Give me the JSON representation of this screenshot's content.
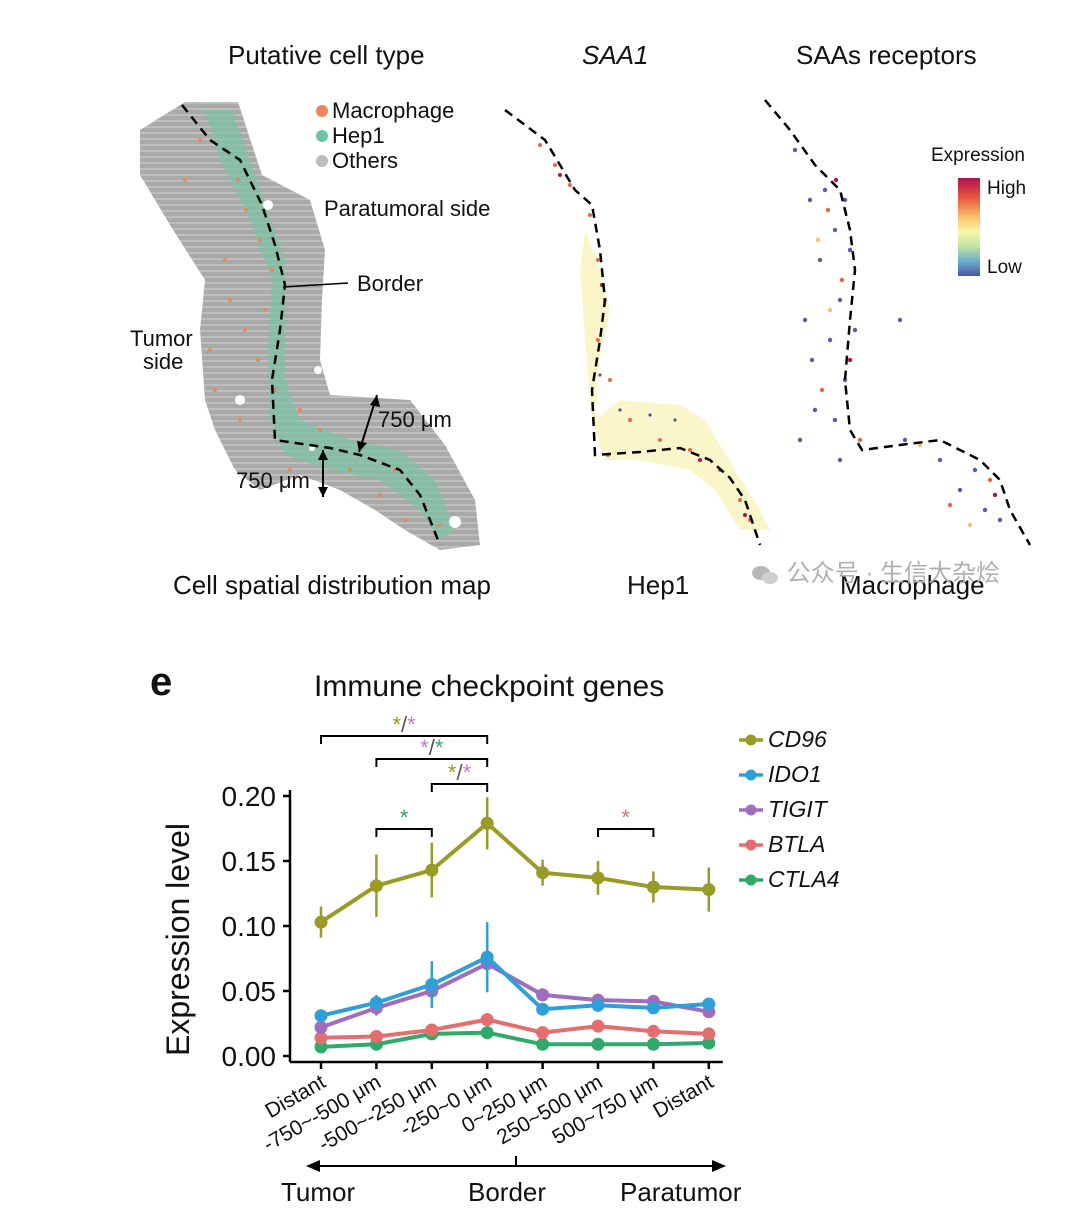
{
  "top_panel": {
    "titles": {
      "cell_type": "Putative cell type",
      "saa1": "SAA1",
      "receptors": "SAAs receptors"
    },
    "legend": [
      {
        "label": "Macrophage",
        "color": "#e8875e"
      },
      {
        "label": "Hep1",
        "color": "#6cc4a0"
      },
      {
        "label": "Others",
        "color": "#bdbdbd"
      }
    ],
    "annotations": {
      "paratumoral": "Paratumoral side",
      "border": "Border",
      "tumor_line1": "Tumor",
      "tumor_line2": "side",
      "dist1": "750 μm",
      "dist2": "750 μm"
    },
    "expression_legend": {
      "title": "Expression",
      "high": "High",
      "low": "Low",
      "colors": [
        "#b0124f",
        "#e8563f",
        "#f8c269",
        "#f8f7ae",
        "#bfe3a0",
        "#6aaed0",
        "#4b55a4"
      ]
    },
    "bottom_labels": {
      "map": "Cell spatial distribution map",
      "hep1": "Hep1",
      "macrophage": "Macrophage"
    },
    "watermark": "公众号 · 生信大杂烩"
  },
  "panel_letter": "e",
  "chart_data": {
    "type": "line",
    "title": "Immune checkpoint genes",
    "ylabel": "Expression level",
    "xlabel": "",
    "ylim": [
      0,
      0.2
    ],
    "yticks": [
      "0.00",
      "0.05",
      "0.10",
      "0.15",
      "0.20"
    ],
    "ytick_values": [
      0,
      0.05,
      0.1,
      0.15,
      0.2
    ],
    "categories": [
      "Distant",
      "-750~-500 μm",
      "-500~-250 μm",
      "-250~0 μm",
      "0~250 μm",
      "250~500 μm",
      "500~750 μm",
      "Distant"
    ],
    "series": [
      {
        "name": "CD96",
        "color": "#9a9a27",
        "values": [
          0.103,
          0.131,
          0.143,
          0.179,
          0.141,
          0.137,
          0.13,
          0.128
        ],
        "errors": [
          0.012,
          0.024,
          0.021,
          0.02,
          0.01,
          0.013,
          0.012,
          0.017
        ]
      },
      {
        "name": "IDO1",
        "color": "#2f9fd8",
        "values": [
          0.031,
          0.041,
          0.055,
          0.076,
          0.036,
          0.039,
          0.037,
          0.04
        ],
        "errors": [
          0.004,
          0.006,
          0.018,
          0.027,
          0.004,
          0.005,
          0.004,
          0.004
        ]
      },
      {
        "name": "TIGIT",
        "color": "#a06cbc",
        "values": [
          0.022,
          0.037,
          0.05,
          0.071,
          0.047,
          0.043,
          0.042,
          0.034
        ],
        "errors": [
          0.004,
          0.006,
          0.012,
          0.02,
          0.005,
          0.004,
          0.004,
          0.004
        ]
      },
      {
        "name": "BTLA",
        "color": "#e46e6e",
        "values": [
          0.014,
          0.015,
          0.02,
          0.028,
          0.018,
          0.023,
          0.019,
          0.017
        ],
        "errors": [
          0.002,
          0.002,
          0.003,
          0.005,
          0.002,
          0.003,
          0.002,
          0.002
        ]
      },
      {
        "name": "CTLA4",
        "color": "#2faa6a",
        "values": [
          0.007,
          0.009,
          0.017,
          0.018,
          0.009,
          0.009,
          0.009,
          0.01
        ],
        "errors": [
          0.001,
          0.001,
          0.002,
          0.002,
          0.001,
          0.001,
          0.001,
          0.001
        ]
      }
    ],
    "significance": [
      {
        "from": 0,
        "to": 3,
        "marks": [
          {
            "text": "*",
            "color": "#9a9a27"
          },
          {
            "text": "/",
            "color": "#555555"
          },
          {
            "text": "*",
            "color": "#c07cc8"
          }
        ]
      },
      {
        "from": 1,
        "to": 3,
        "marks": [
          {
            "text": "*",
            "color": "#c07cc8"
          },
          {
            "text": "/",
            "color": "#555555"
          },
          {
            "text": "*",
            "color": "#2faa6a"
          }
        ]
      },
      {
        "from": 2,
        "to": 3,
        "marks": [
          {
            "text": "*",
            "color": "#9a9a27"
          },
          {
            "text": "/",
            "color": "#555555"
          },
          {
            "text": "*",
            "color": "#c07cc8"
          }
        ]
      },
      {
        "from": 1,
        "to": 2,
        "marks": [
          {
            "text": "*",
            "color": "#2faa6a"
          }
        ]
      },
      {
        "from": 5,
        "to": 6,
        "marks": [
          {
            "text": "*",
            "color": "#e46e6e"
          }
        ]
      }
    ],
    "region_labels": {
      "left": "Tumor",
      "middle": "Border",
      "right": "Paratumor"
    }
  }
}
